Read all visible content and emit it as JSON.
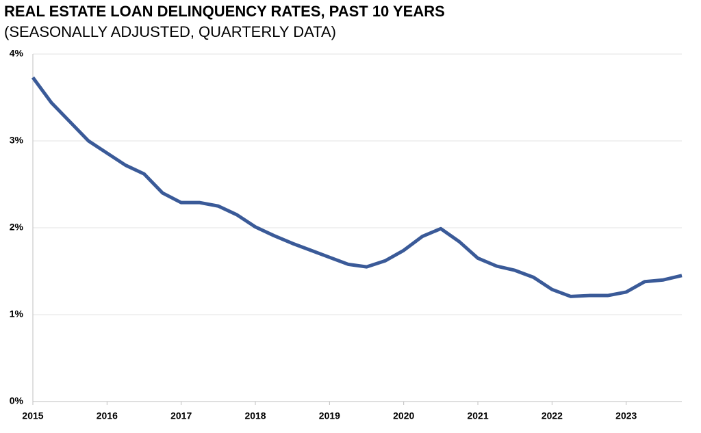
{
  "chart_data": {
    "type": "line",
    "title": "REAL ESTATE LOAN DELINQUENCY RATES, PAST 10 YEARS",
    "subtitle": "(SEASONALLY ADJUSTED, QUARTERLY DATA)",
    "x": [
      2015,
      2015.25,
      2015.5,
      2015.75,
      2016,
      2016.25,
      2016.5,
      2016.75,
      2017,
      2017.25,
      2017.5,
      2017.75,
      2018,
      2018.25,
      2018.5,
      2018.75,
      2019,
      2019.25,
      2019.5,
      2019.75,
      2020,
      2020.25,
      2020.5,
      2020.75,
      2021,
      2021.25,
      2021.5,
      2021.75,
      2022,
      2022.25,
      2022.5,
      2022.75,
      2023,
      2023.25,
      2023.5,
      2023.75
    ],
    "values": [
      3.73,
      3.44,
      3.22,
      3.0,
      2.86,
      2.72,
      2.62,
      2.4,
      2.29,
      2.29,
      2.25,
      2.15,
      2.01,
      1.91,
      1.82,
      1.74,
      1.66,
      1.58,
      1.55,
      1.62,
      1.74,
      1.9,
      1.99,
      1.84,
      1.65,
      1.56,
      1.51,
      1.43,
      1.29,
      1.21,
      1.22,
      1.22,
      1.26,
      1.38,
      1.4,
      1.45
    ],
    "color": "#3a5a98",
    "xlim": [
      2015,
      2023.75
    ],
    "xticks": [
      2015,
      2016,
      2017,
      2018,
      2019,
      2020,
      2021,
      2022,
      2023
    ],
    "ylim": [
      0,
      4
    ],
    "yticks": [
      {
        "value": 0,
        "label": "0%"
      },
      {
        "value": 1,
        "label": "1%"
      },
      {
        "value": 2,
        "label": "2%"
      },
      {
        "value": 3,
        "label": "3%"
      },
      {
        "value": 4,
        "label": "4%"
      }
    ],
    "grid": true
  }
}
